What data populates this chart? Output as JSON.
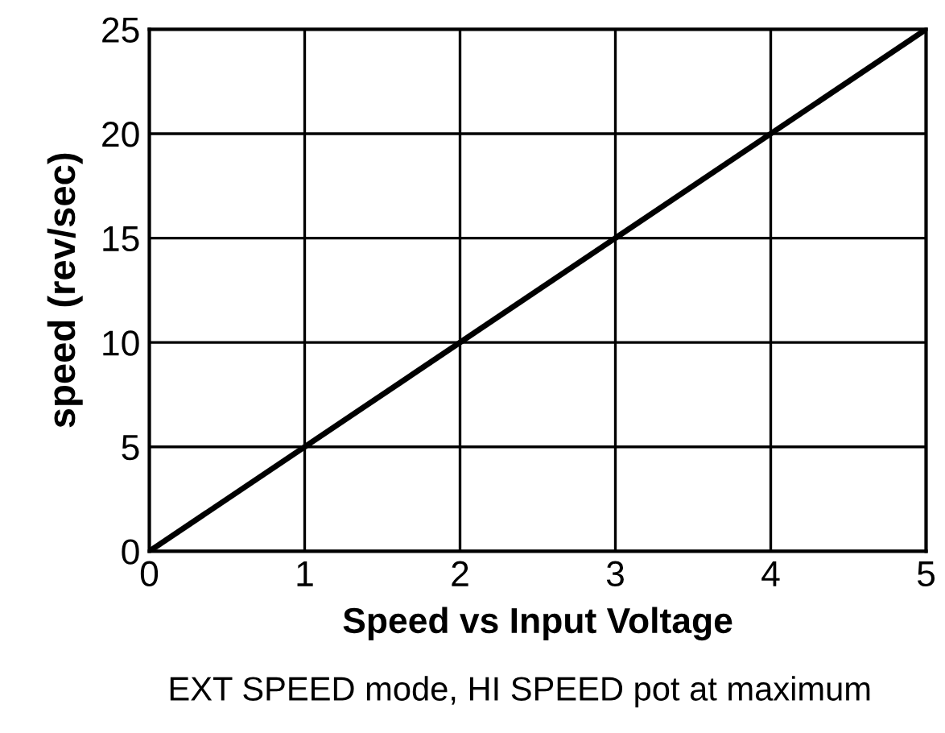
{
  "chart_data": {
    "type": "line",
    "xlabel": "Speed vs Input Voltage",
    "ylabel": "speed (rev/sec)",
    "annotations": [
      "EXT SPEED mode, HI SPEED pot at maximum"
    ],
    "x": [
      0,
      5
    ],
    "series": [
      {
        "color": "#000000",
        "values": [
          0,
          25
        ]
      }
    ],
    "xlim": [
      0,
      5
    ],
    "ylim": [
      0,
      25
    ],
    "xticks": [
      0,
      1,
      2,
      3,
      4,
      5
    ],
    "yticks": [
      0,
      5,
      10,
      15,
      20,
      25
    ],
    "grid": true,
    "marker": "none",
    "line_style": "solid"
  }
}
